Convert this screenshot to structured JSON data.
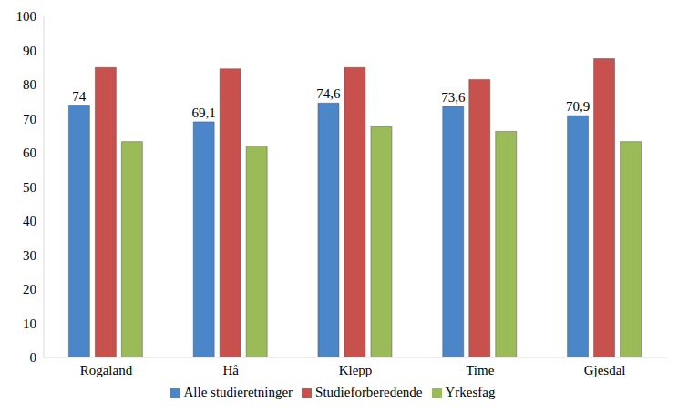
{
  "chart_data": {
    "type": "bar",
    "categories": [
      "Rogaland",
      "Hå",
      "Klepp",
      "Time",
      "Gjesdal"
    ],
    "series": [
      {
        "name": "Alle studieretninger",
        "color": "#4a86c8",
        "values": [
          74,
          69.1,
          74.6,
          73.6,
          70.9
        ],
        "data_labels": true,
        "value_labels": [
          "74",
          "69,1",
          "74,6",
          "73,6",
          "70,9"
        ]
      },
      {
        "name": "Studieforberedende",
        "color": "#c8504d",
        "values": [
          85,
          84.6,
          85,
          81.5,
          87.6
        ]
      },
      {
        "name": "Yrkesfag",
        "color": "#9bbb59",
        "values": [
          63.3,
          62,
          67.6,
          66.3,
          63.3
        ]
      }
    ],
    "ylim": [
      0,
      100
    ],
    "yticks": [
      0,
      10,
      20,
      30,
      40,
      50,
      60,
      70,
      80,
      90,
      100
    ],
    "grid": false,
    "legend": "bottom"
  }
}
